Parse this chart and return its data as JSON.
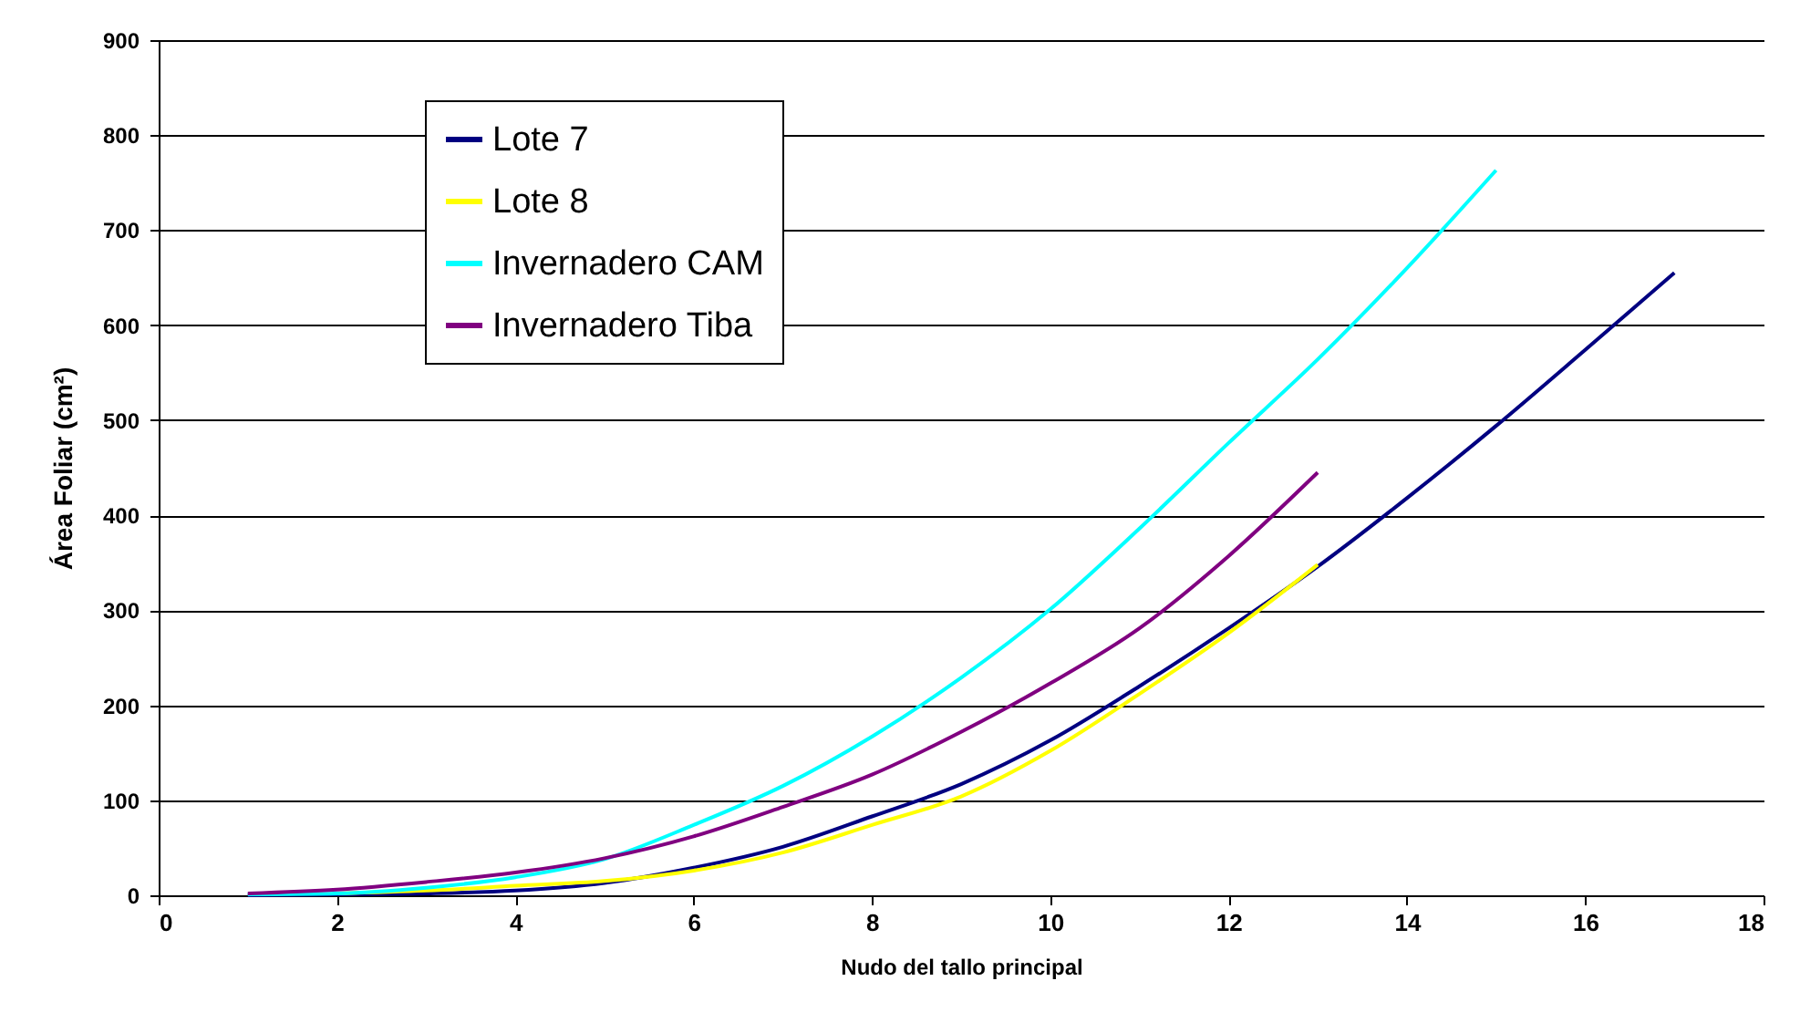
{
  "chart_data": {
    "type": "line",
    "xlabel": "Nudo del tallo principal",
    "ylabel": "Área Foliar (cm²)",
    "xlim": [
      0,
      18
    ],
    "xticks": [
      0,
      2,
      4,
      6,
      8,
      10,
      12,
      14,
      16,
      18
    ],
    "ylim": [
      0,
      900
    ],
    "yticks": [
      0,
      100,
      200,
      300,
      400,
      500,
      600,
      700,
      800,
      900
    ],
    "grid": "y",
    "legend": "top left",
    "marker": "none",
    "line_style": "solid",
    "series": [
      {
        "name": "Lote 7",
        "color": "#000080",
        "x": [
          1,
          2,
          3,
          4,
          5,
          6,
          7,
          8,
          9,
          10,
          11,
          12,
          13,
          14,
          15,
          16,
          17
        ],
        "values": [
          0,
          1,
          2,
          5,
          13,
          29,
          51,
          83,
          117,
          163,
          220,
          281,
          346,
          418,
          494,
          574,
          655
        ]
      },
      {
        "name": "Lote 8",
        "color": "#ffff00",
        "x": [
          2,
          3,
          4,
          5,
          6,
          7,
          8,
          9,
          10,
          11,
          12,
          13
        ],
        "values": [
          2,
          5,
          10,
          15,
          26,
          45,
          74,
          104,
          152,
          212,
          276,
          348
        ]
      },
      {
        "name": "Invernadero CAM",
        "color": "#00ffff",
        "x": [
          1,
          2,
          3,
          4,
          5,
          6,
          7,
          8,
          9,
          10,
          11,
          12,
          13,
          14,
          15
        ],
        "values": [
          1,
          2,
          8,
          19,
          38,
          74,
          115,
          167,
          229,
          301,
          386,
          476,
          564,
          660,
          763
        ]
      },
      {
        "name": "Invernadero Tiba",
        "color": "#800080",
        "x": [
          1,
          2,
          3,
          4,
          5,
          6,
          7,
          8,
          9,
          10,
          11,
          12,
          13
        ],
        "values": [
          2,
          6,
          14,
          24,
          39,
          62,
          93,
          127,
          172,
          223,
          281,
          357,
          445
        ]
      }
    ]
  }
}
